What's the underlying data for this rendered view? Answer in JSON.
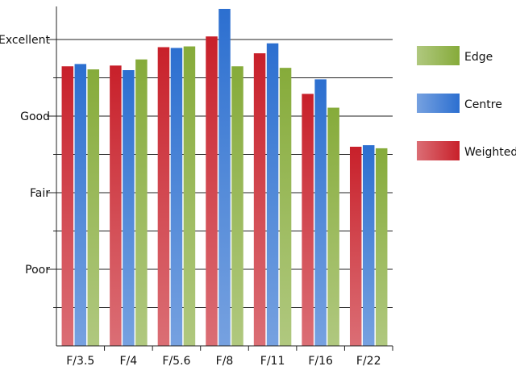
{
  "chart_data": {
    "type": "bar",
    "title": "",
    "xlabel": "",
    "ylabel": "",
    "categories": [
      "F/3.5",
      "F/4",
      "F/5.6",
      "F/8",
      "F/11",
      "F/16",
      "F/22"
    ],
    "y_ticks": [
      {
        "label": "Poor",
        "value": 1
      },
      {
        "label": "Fair",
        "value": 2
      },
      {
        "label": "Good",
        "value": 3
      },
      {
        "label": "Excellent",
        "value": 4
      }
    ],
    "ylim": [
      0,
      4.5
    ],
    "grid": true,
    "legend_position": "right",
    "series": [
      {
        "name": "Weighted",
        "color": "#c8202a",
        "values": [
          3.65,
          3.66,
          3.9,
          4.04,
          3.82,
          3.29,
          2.6
        ]
      },
      {
        "name": "Centre",
        "color": "#2c6fd0",
        "values": [
          3.68,
          3.6,
          3.89,
          4.4,
          3.95,
          3.48,
          2.62
        ]
      },
      {
        "name": "Edge",
        "color": "#86ab3a",
        "values": [
          3.61,
          3.74,
          3.91,
          3.65,
          3.63,
          3.11,
          2.58
        ]
      }
    ],
    "legend_order": [
      "Edge",
      "Centre",
      "Weighted"
    ]
  }
}
